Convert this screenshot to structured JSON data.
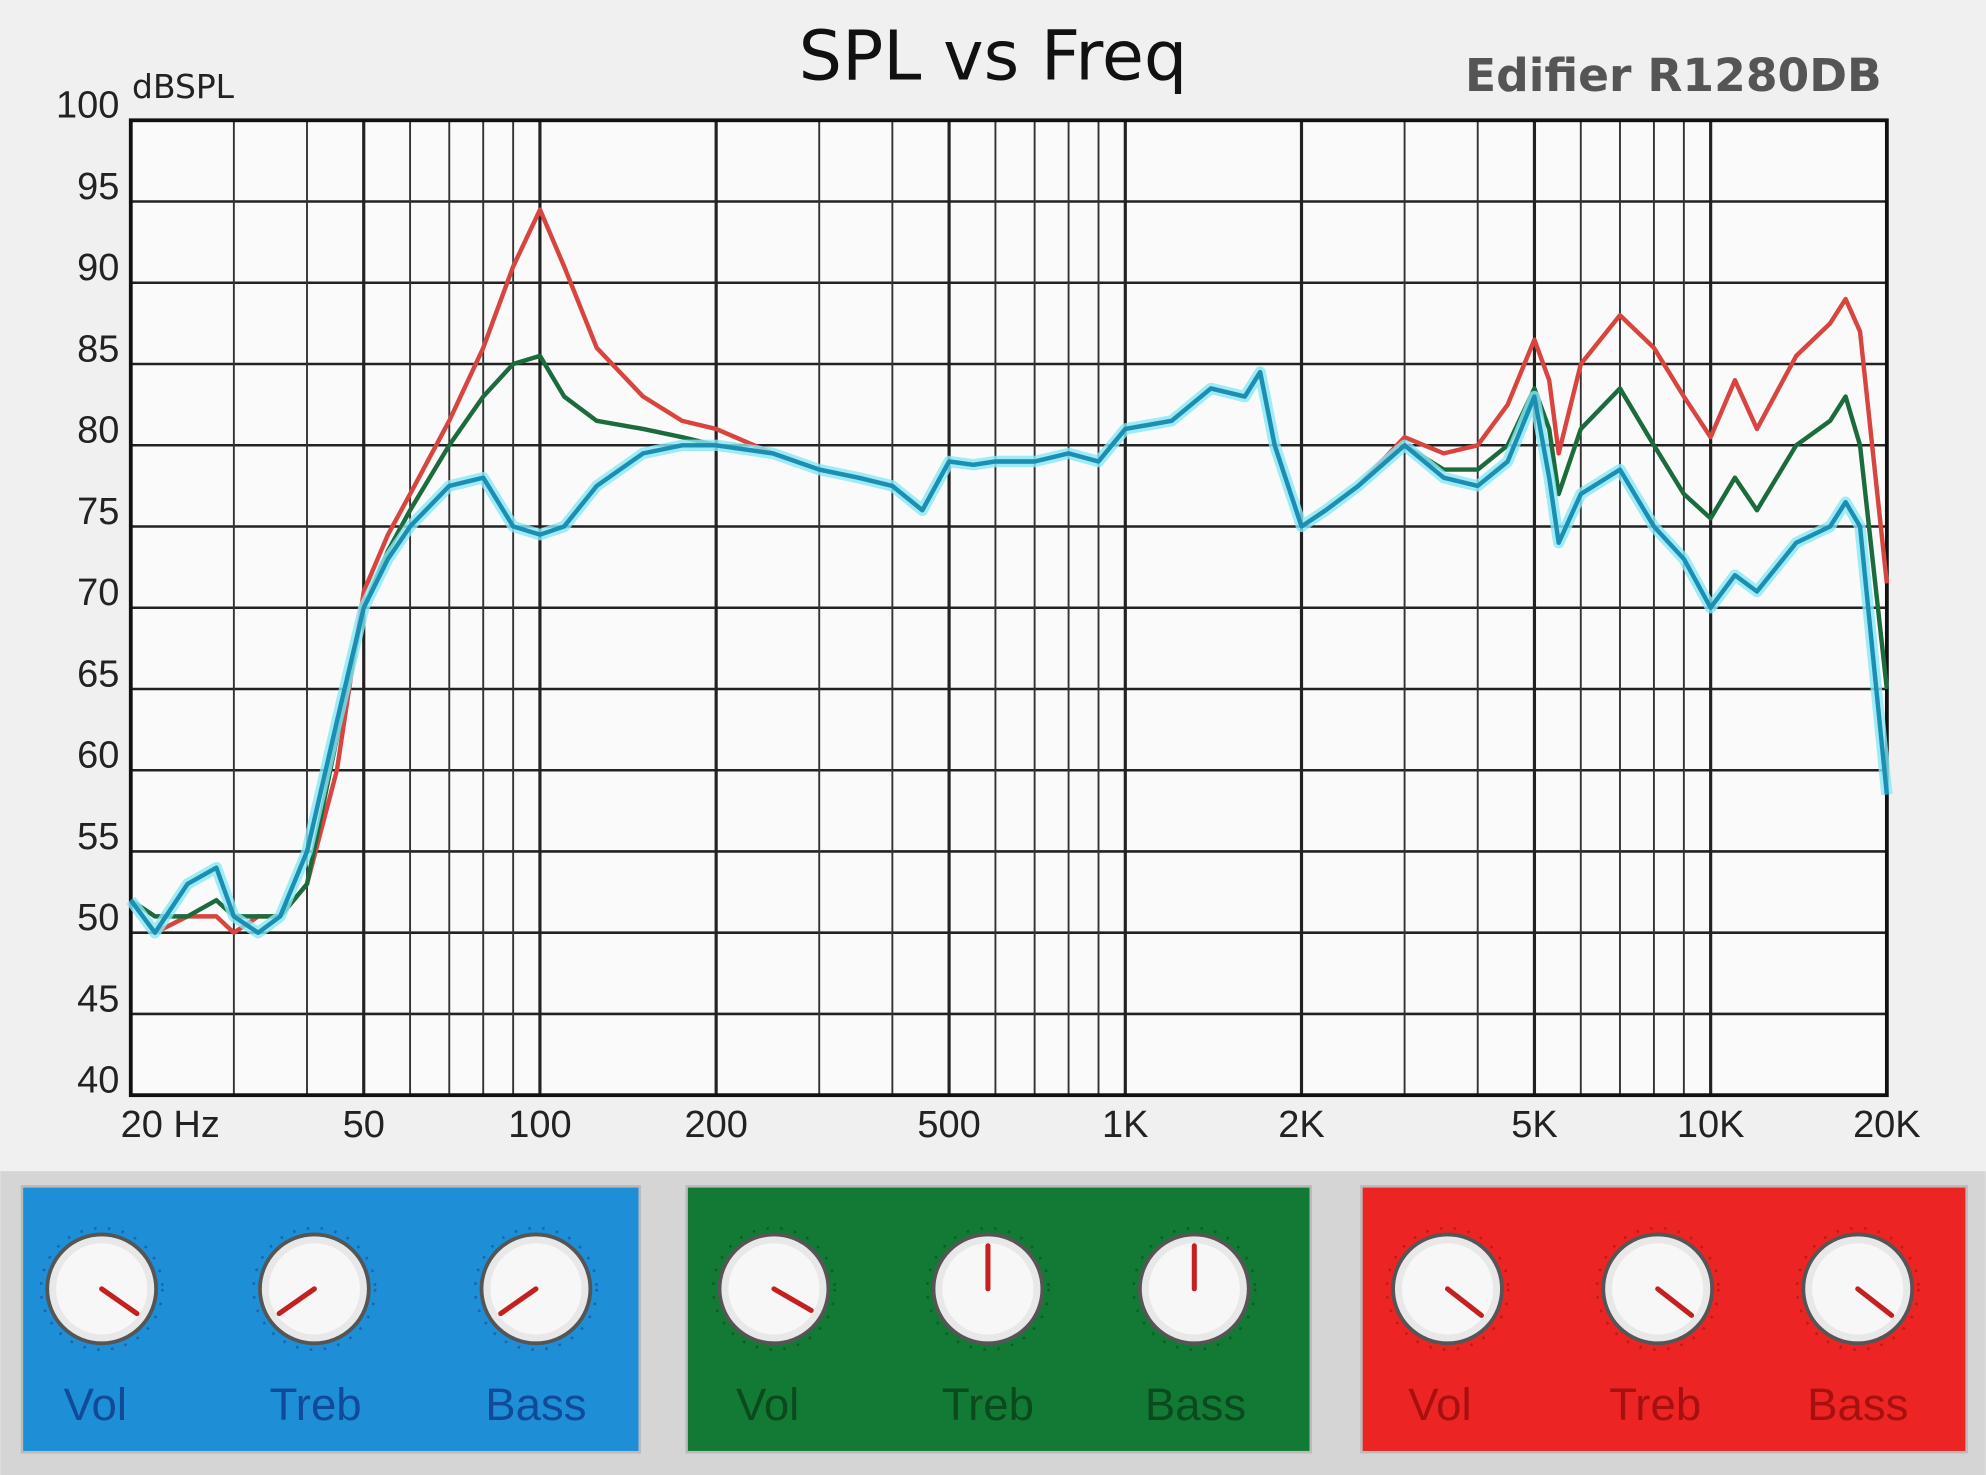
{
  "chart_data": {
    "type": "line",
    "title": "SPL vs Freq",
    "subtitle": "Edifier R1280DB",
    "y_label": "dBSPL",
    "log_x": true,
    "grid": true,
    "xlim": [
      20,
      20000
    ],
    "ylim": [
      40,
      100
    ],
    "yticks": [
      40,
      45,
      50,
      55,
      60,
      65,
      70,
      75,
      80,
      85,
      90,
      95,
      100
    ],
    "xticks": [
      {
        "value": 20,
        "label": "20 Hz"
      },
      50,
      100,
      200,
      500,
      {
        "value": 1000,
        "label": "1K"
      },
      {
        "value": 2000,
        "label": "2K"
      },
      {
        "value": 5000,
        "label": "5K"
      },
      {
        "value": 10000,
        "label": "10K"
      },
      {
        "value": 20000,
        "label": "20K"
      }
    ],
    "xminorticks": [
      30,
      40,
      60,
      70,
      80,
      90,
      300,
      400,
      600,
      700,
      800,
      900,
      3000,
      4000,
      6000,
      7000,
      8000,
      9000
    ],
    "x": [
      20,
      22,
      25,
      28,
      30,
      33,
      36,
      40,
      45,
      50,
      55,
      60,
      70,
      80,
      90,
      100,
      110,
      125,
      150,
      175,
      200,
      250,
      300,
      350,
      400,
      450,
      500,
      550,
      600,
      700,
      800,
      900,
      1000,
      1200,
      1400,
      1600,
      1700,
      1800,
      2000,
      2200,
      2500,
      3000,
      3500,
      4000,
      4500,
      5000,
      5300,
      5500,
      6000,
      7000,
      8000,
      9000,
      10000,
      11000,
      12000,
      14000,
      16000,
      17000,
      18000,
      20000
    ],
    "series": [
      {
        "color": "#d8453f",
        "values": [
          52,
          50,
          51,
          51,
          50,
          51,
          51,
          53,
          60,
          71,
          74.5,
          77,
          81.5,
          86,
          91,
          94.5,
          91,
          86,
          83,
          81.5,
          81,
          79.5,
          78.5,
          78,
          77.5,
          76,
          79,
          78.8,
          79,
          79,
          79.5,
          79,
          81,
          81.5,
          83.5,
          83,
          84.5,
          80,
          75,
          76,
          77.5,
          80.5,
          79.5,
          80,
          82.5,
          86.5,
          84,
          79.5,
          85,
          88,
          86,
          83,
          80.5,
          84,
          81,
          85.5,
          87.5,
          89,
          87,
          71.5
        ]
      },
      {
        "color": "#1b6b3c",
        "values": [
          52,
          51,
          51,
          52,
          51,
          51,
          51,
          53,
          62,
          70,
          73.5,
          76,
          80,
          83,
          85,
          85.5,
          83,
          81.5,
          81,
          80.5,
          80,
          79.5,
          78.5,
          78,
          77.5,
          76,
          79,
          78.8,
          79,
          79,
          79.5,
          79,
          81,
          81.5,
          83.5,
          83,
          84.5,
          80,
          75,
          76,
          77.5,
          80,
          78.5,
          78.5,
          80,
          83.5,
          81,
          77,
          81,
          83.5,
          80,
          77,
          75.5,
          78,
          76,
          80,
          81.5,
          83,
          80,
          65
        ]
      },
      {
        "color": "#1b8fb3",
        "glow": "#8ae9f5",
        "values": [
          52,
          50,
          53,
          54,
          51,
          50,
          51,
          55,
          63,
          70,
          73,
          75,
          77.5,
          78,
          75,
          74.5,
          75,
          77.5,
          79.5,
          80,
          80,
          79.5,
          78.5,
          78,
          77.5,
          76,
          79,
          78.8,
          79,
          79,
          79.5,
          79,
          81,
          81.5,
          83.5,
          83,
          84.5,
          80,
          75,
          76,
          77.5,
          80,
          78,
          77.5,
          79,
          83,
          78,
          74,
          77,
          78.5,
          75,
          73,
          70,
          72,
          71,
          74,
          75,
          76.5,
          75,
          58.5
        ]
      }
    ]
  },
  "panels": [
    {
      "color": "#1e8fd6",
      "text_color": "#124a9a",
      "knobs": [
        "Vol",
        "Treb",
        "Bass"
      ]
    },
    {
      "color": "#137a35",
      "text_color": "#0a4a1e",
      "knobs": [
        "Vol",
        "Treb",
        "Bass"
      ]
    },
    {
      "color": "#ec2424",
      "text_color": "#a81010",
      "knobs": [
        "Vol",
        "Treb",
        "Bass"
      ]
    }
  ]
}
